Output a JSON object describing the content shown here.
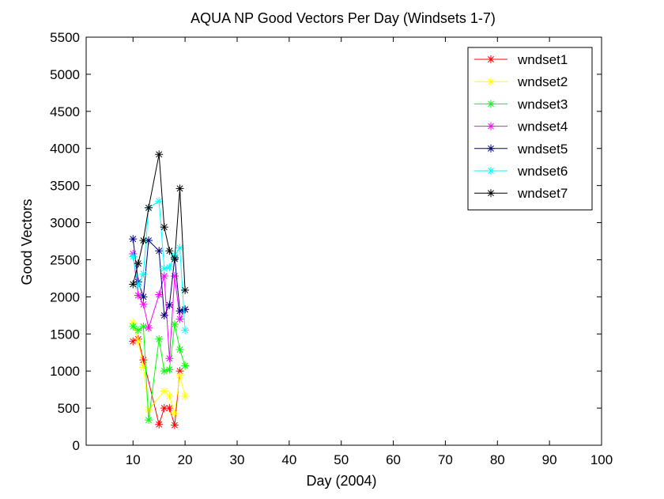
{
  "chart_data": {
    "type": "line",
    "title": "AQUA NP Good Vectors Per Day (Windsets 1-7)",
    "xlabel": "Day (2004)",
    "ylabel": "Good Vectors",
    "xlim": [
      1,
      100
    ],
    "ylim": [
      0,
      5500
    ],
    "xticks": [
      10,
      20,
      30,
      40,
      50,
      60,
      70,
      80,
      90,
      100
    ],
    "yticks": [
      0,
      500,
      1000,
      1500,
      2000,
      2500,
      3000,
      3500,
      4000,
      4500,
      5000,
      5500
    ],
    "legend_position": "top-right",
    "marker": "asterisk",
    "series": [
      {
        "name": "wndset1",
        "color": "#ff0000",
        "x": [
          10,
          11,
          12,
          15,
          16,
          17,
          18,
          19
        ],
        "y": [
          1400,
          1430,
          1150,
          280,
          500,
          500,
          270,
          1000
        ]
      },
      {
        "name": "wndset2",
        "color": "#ffff00",
        "x": [
          10,
          11,
          12,
          13,
          16,
          17,
          18,
          19,
          20
        ],
        "y": [
          1650,
          1400,
          1050,
          480,
          730,
          660,
          430,
          940,
          660
        ]
      },
      {
        "name": "wndset3",
        "color": "#00ff00",
        "x": [
          10,
          11,
          12,
          13,
          15,
          16,
          17,
          18,
          19,
          20
        ],
        "y": [
          1600,
          1550,
          1600,
          340,
          1430,
          1000,
          1020,
          1630,
          1290,
          1070
        ]
      },
      {
        "name": "wndset4",
        "color": "#ff00ff",
        "x": [
          10,
          11,
          12,
          13,
          15,
          16,
          17,
          18,
          19,
          20
        ],
        "y": [
          2580,
          2020,
          1900,
          1580,
          2030,
          2280,
          1170,
          2280,
          1700,
          1830
        ]
      },
      {
        "name": "wndset5",
        "color": "#000080",
        "x": [
          10,
          11,
          12,
          13,
          15,
          16,
          17,
          18,
          19,
          20
        ],
        "y": [
          2780,
          2200,
          2000,
          2760,
          2620,
          1750,
          1890,
          2530,
          1810,
          1830
        ]
      },
      {
        "name": "wndset6",
        "color": "#00ffff",
        "x": [
          10,
          11,
          12,
          13,
          15,
          16,
          17,
          18,
          19,
          20
        ],
        "y": [
          2540,
          2150,
          2310,
          3200,
          3290,
          2380,
          2400,
          2560,
          2660,
          1550
        ]
      },
      {
        "name": "wndset7",
        "color": "#000000",
        "x": [
          10,
          11,
          12,
          13,
          15,
          16,
          17,
          18,
          19,
          20
        ],
        "y": [
          2170,
          2450,
          2760,
          3200,
          3920,
          2940,
          2620,
          2510,
          3460,
          2090
        ]
      }
    ]
  }
}
